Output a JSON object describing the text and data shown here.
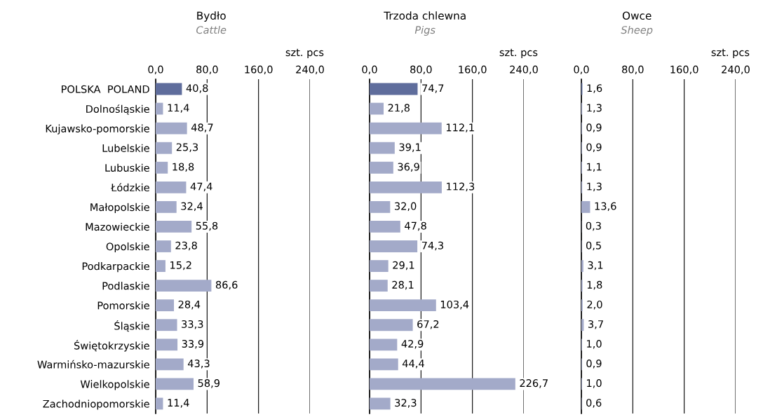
{
  "chart_data": [
    {
      "type": "bar",
      "orientation": "horizontal",
      "title": "Bydło",
      "subtitle": "Cattle",
      "xlabel": "szt. pcs",
      "categories": [
        "POLSKA  POLAND",
        "Dolnośląskie",
        "Kujawsko-pomorskie",
        "Lubelskie",
        "Lubuskie",
        "Łódzkie",
        "Małopolskie",
        "Mazowieckie",
        "Opolskie",
        "Podkarpackie",
        "Podlaskie",
        "Pomorskie",
        "Śląskie",
        "Świętokrzyskie",
        "Warmińsko-mazurskie",
        "Wielkopolskie",
        "Zachodniopomorskie"
      ],
      "values": [
        40.8,
        11.4,
        48.7,
        25.3,
        18.8,
        47.4,
        32.4,
        55.8,
        23.8,
        15.2,
        86.6,
        28.4,
        33.3,
        33.9,
        43.3,
        58.9,
        11.4
      ],
      "value_labels": [
        "40,8",
        "11,4",
        "48,7",
        "25,3",
        "18,8",
        "47,4",
        "32,4",
        "55,8",
        "23,8",
        "15,2",
        "86,6",
        "28,4",
        "33,3",
        "33,9",
        "43,3",
        "58,9",
        "11,4"
      ],
      "colors": [
        "#5f6d9c",
        "#a3aac9",
        "#a3aac9",
        "#a3aac9",
        "#a3aac9",
        "#a3aac9",
        "#a3aac9",
        "#a3aac9",
        "#a3aac9",
        "#a3aac9",
        "#a3aac9",
        "#a3aac9",
        "#a3aac9",
        "#a3aac9",
        "#a3aac9",
        "#a3aac9",
        "#a3aac9"
      ],
      "xlim": [
        0,
        240
      ],
      "xticks": [
        {
          "value": 0,
          "label": "0,0"
        },
        {
          "value": 80,
          "label": "80,0"
        },
        {
          "value": 160,
          "label": "160,0"
        },
        {
          "value": 240,
          "label": "240,0"
        }
      ],
      "grid": "x"
    },
    {
      "type": "bar",
      "orientation": "horizontal",
      "title": "Trzoda chlewna",
      "subtitle": "Pigs",
      "xlabel": "szt. pcs",
      "categories": [
        null,
        null,
        null,
        null,
        null,
        null,
        null,
        null,
        null,
        null,
        null,
        null,
        null,
        null,
        null,
        null,
        null
      ],
      "values": [
        74.7,
        21.8,
        112.1,
        39.1,
        36.9,
        112.3,
        32.0,
        47.8,
        74.3,
        29.1,
        28.1,
        103.4,
        67.2,
        42.9,
        44.4,
        226.7,
        32.3
      ],
      "value_labels": [
        "74,7",
        "21,8",
        "112,1",
        "39,1",
        "36,9",
        "112,3",
        "32,0",
        "47,8",
        "74,3",
        "29,1",
        "28,1",
        "103,4",
        "67,2",
        "42,9",
        "44,4",
        "226,7",
        "32,3"
      ],
      "colors": [
        "#5f6d9c",
        "#a3aac9",
        "#a3aac9",
        "#a3aac9",
        "#a3aac9",
        "#a3aac9",
        "#a3aac9",
        "#a3aac9",
        "#a3aac9",
        "#a3aac9",
        "#a3aac9",
        "#a3aac9",
        "#a3aac9",
        "#a3aac9",
        "#a3aac9",
        "#a3aac9",
        "#a3aac9"
      ],
      "xlim": [
        0,
        240
      ],
      "xticks": [
        {
          "value": 0,
          "label": "0,0"
        },
        {
          "value": 80,
          "label": "80,0"
        },
        {
          "value": 160,
          "label": "160,0"
        },
        {
          "value": 240,
          "label": "240,0"
        }
      ],
      "grid": "x"
    },
    {
      "type": "bar",
      "orientation": "horizontal",
      "title": "Owce",
      "subtitle": "Sheep",
      "xlabel": "szt. pcs",
      "categories": [
        null,
        null,
        null,
        null,
        null,
        null,
        null,
        null,
        null,
        null,
        null,
        null,
        null,
        null,
        null,
        null,
        null
      ],
      "values": [
        1.6,
        1.3,
        0.9,
        0.9,
        1.1,
        1.3,
        13.6,
        0.3,
        0.5,
        3.1,
        1.8,
        2.0,
        3.7,
        1.0,
        0.9,
        1.0,
        0.6
      ],
      "value_labels": [
        "1,6",
        "1,3",
        "0,9",
        "0,9",
        "1,1",
        "1,3",
        "13,6",
        "0,3",
        "0,5",
        "3,1",
        "1,8",
        "2,0",
        "3,7",
        "1,0",
        "0,9",
        "1,0",
        "0,6"
      ],
      "colors": [
        "#5f6d9c",
        "#a3aac9",
        "#a3aac9",
        "#a3aac9",
        "#a3aac9",
        "#a3aac9",
        "#a3aac9",
        "#a3aac9",
        "#a3aac9",
        "#a3aac9",
        "#a3aac9",
        "#a3aac9",
        "#a3aac9",
        "#a3aac9",
        "#a3aac9",
        "#a3aac9",
        "#a3aac9"
      ],
      "xlim": [
        0,
        240
      ],
      "xticks": [
        {
          "value": 0,
          "label": "0,0"
        },
        {
          "value": 80,
          "label": "80,0"
        },
        {
          "value": 160,
          "label": "160,0"
        },
        {
          "value": 240,
          "label": "240,0"
        }
      ],
      "grid": "x"
    }
  ]
}
